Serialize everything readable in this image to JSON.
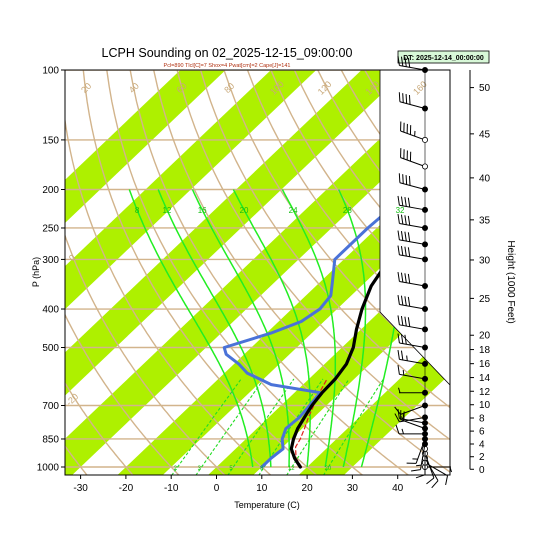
{
  "chart_data": {
    "type": "skew-t sounding",
    "title": "LCPH Sounding on 02_2025-12-15_09:00:00",
    "subtitle": "Pcl=890 Tlcl[C]=7 Shox=4 Pwat[cm]=2 Cape[J]=141",
    "datetime_box": "DT: 2025-12-14_00:00:00",
    "xlabel": "Temperature (C)",
    "ylabel": "P (hPa)",
    "ylabel_right": "Height (1000 Feet)",
    "x_ticks": [
      -30,
      -20,
      -10,
      0,
      10,
      20,
      30,
      40
    ],
    "x_tick_labels": [
      "-30",
      "-20",
      "-10",
      "0",
      "10",
      "20",
      "30",
      "40"
    ],
    "pressure_ticks": [
      100,
      150,
      200,
      250,
      300,
      400,
      500,
      700,
      850,
      1000
    ],
    "pressure_tick_labels": [
      "100",
      "150",
      "200",
      "250",
      "300",
      "400",
      "500",
      "700",
      "850",
      "1000"
    ],
    "xlim": [
      -33.5,
      51.5
    ],
    "plim": [
      100,
      1050
    ],
    "temperature_band_edges": [
      -100,
      -90,
      -80,
      -70,
      -60,
      -50,
      -40,
      -30,
      -20,
      -10,
      0,
      10,
      20,
      30,
      40
    ],
    "dry_adiabats": [
      -30,
      -20,
      -10,
      0,
      10,
      20,
      30,
      40,
      50,
      60,
      70,
      80,
      90,
      100,
      110,
      120,
      130,
      140,
      150,
      160,
      170,
      180,
      190,
      200
    ],
    "dry_adiabat_labels": [
      {
        "theta": 160,
        "text": "160"
      },
      {
        "theta": 140,
        "text": "140"
      },
      {
        "theta": 120,
        "text": "120"
      },
      {
        "theta": 100,
        "text": "100"
      },
      {
        "theta": 80,
        "text": "80"
      },
      {
        "theta": 60,
        "text": "60"
      },
      {
        "theta": 40,
        "text": "40"
      },
      {
        "theta": 20,
        "text": "20"
      },
      {
        "theta": 0,
        "text": "0"
      },
      {
        "theta": -20,
        "text": "-20"
      },
      {
        "theta": -40,
        "text": "-40"
      }
    ],
    "saturated_adiabats_c": [
      8,
      12,
      16,
      20,
      24,
      28,
      32
    ],
    "saturated_adiabat_labels": [
      "8",
      "12",
      "16",
      "20",
      "24",
      "28",
      "32"
    ],
    "mixing_ratios_gkg": [
      2,
      3,
      5,
      8,
      12,
      20
    ],
    "mixing_ratio_labels": [
      "2",
      "3",
      "5",
      "8",
      "12",
      "20"
    ],
    "temperature_profile": [
      {
        "p": 1000,
        "t": 18.5
      },
      {
        "p": 950,
        "t": 15.2
      },
      {
        "p": 900,
        "t": 12.3
      },
      {
        "p": 850,
        "t": 10.5
      },
      {
        "p": 800,
        "t": 9.0
      },
      {
        "p": 750,
        "t": 7.9
      },
      {
        "p": 700,
        "t": 6.8
      },
      {
        "p": 650,
        "t": 6.1
      },
      {
        "p": 600,
        "t": 5.8
      },
      {
        "p": 550,
        "t": 4.8
      },
      {
        "p": 500,
        "t": 2.5
      },
      {
        "p": 450,
        "t": -1.0
      },
      {
        "p": 400,
        "t": -4.5
      },
      {
        "p": 350,
        "t": -7.8
      },
      {
        "p": 300,
        "t": -10.0
      },
      {
        "p": 270,
        "t": -11.3
      },
      {
        "p": 250,
        "t": -11.0
      },
      {
        "p": 220,
        "t": -8.5
      },
      {
        "p": 200,
        "t": -6.0
      },
      {
        "p": 175,
        "t": -1.7
      },
      {
        "p": 150,
        "t": 2.7
      },
      {
        "p": 125,
        "t": 6.6
      },
      {
        "p": 110,
        "t": 9.5
      },
      {
        "p": 100,
        "t": 11.7
      }
    ],
    "dewpoint_profile": [
      {
        "p": 1000,
        "t": 10.0
      },
      {
        "p": 950,
        "t": 10.0
      },
      {
        "p": 900,
        "t": 10.5
      },
      {
        "p": 850,
        "t": 8.0
      },
      {
        "p": 800,
        "t": 6.4
      },
      {
        "p": 750,
        "t": 6.8
      },
      {
        "p": 700,
        "t": 6.3
      },
      {
        "p": 650,
        "t": 5.7
      },
      {
        "p": 620,
        "t": -7.0
      },
      {
        "p": 580,
        "t": -15.0
      },
      {
        "p": 550,
        "t": -19.0
      },
      {
        "p": 520,
        "t": -24.0
      },
      {
        "p": 500,
        "t": -26.0
      },
      {
        "p": 460,
        "t": -19.0
      },
      {
        "p": 430,
        "t": -15.0
      },
      {
        "p": 400,
        "t": -13.8
      },
      {
        "p": 370,
        "t": -14.5
      },
      {
        "p": 340,
        "t": -17.5
      },
      {
        "p": 300,
        "t": -22.0
      },
      {
        "p": 250,
        "t": -22.0
      },
      {
        "p": 200,
        "t": -21.0
      },
      {
        "p": 150,
        "t": -19.5
      },
      {
        "p": 130,
        "t": -16.0
      },
      {
        "p": 115,
        "t": -11.0
      },
      {
        "p": 100,
        "t": -6.0
      }
    ],
    "parcel_path": [
      {
        "p": 1000,
        "t": 18.8
      },
      {
        "p": 950,
        "t": 15.5
      },
      {
        "p": 890,
        "t": 12.8
      },
      {
        "p": 850,
        "t": 12.0
      },
      {
        "p": 800,
        "t": 10.5
      },
      {
        "p": 750,
        "t": 8.8
      },
      {
        "p": 700,
        "t": 7.2
      },
      {
        "p": 650,
        "t": 5.5
      },
      {
        "p": 600,
        "t": 4.0
      }
    ],
    "height_axis_ticks": [
      0,
      2,
      4,
      6,
      8,
      10,
      12,
      14,
      16,
      18,
      20,
      25,
      30,
      35,
      40,
      45,
      50
    ],
    "height_axis_labels": [
      "0",
      "2",
      "4",
      "6",
      "8",
      "10",
      "12",
      "14",
      "16",
      "18",
      "20",
      "25",
      "30",
      "35",
      "40",
      "45",
      "50"
    ],
    "wind_barbs": [
      {
        "p": 1000,
        "dir": 90,
        "speed": 5,
        "hollow": true
      },
      {
        "p": 975,
        "dir": 120,
        "speed": 10,
        "hollow": true
      },
      {
        "p": 950,
        "dir": 150,
        "speed": 10,
        "hollow": true
      },
      {
        "p": 925,
        "dir": 160,
        "speed": 10,
        "hollow": true
      },
      {
        "p": 900,
        "dir": 180,
        "speed": 10,
        "hollow": true
      },
      {
        "p": 875,
        "dir": 190,
        "speed": 15,
        "hollow": false
      },
      {
        "p": 850,
        "dir": 200,
        "speed": 15,
        "hollow": false
      },
      {
        "p": 825,
        "dir": 270,
        "speed": 15,
        "hollow": false
      },
      {
        "p": 800,
        "dir": 290,
        "speed": 20,
        "hollow": false
      },
      {
        "p": 775,
        "dir": 280,
        "speed": 15,
        "hollow": false
      },
      {
        "p": 750,
        "dir": 260,
        "speed": 15,
        "hollow": false
      },
      {
        "p": 700,
        "dir": 250,
        "speed": 10,
        "hollow": false
      },
      {
        "p": 650,
        "dir": 270,
        "speed": 5,
        "hollow": false
      },
      {
        "p": 600,
        "dir": 280,
        "speed": 15,
        "hollow": false
      },
      {
        "p": 550,
        "dir": 280,
        "speed": 25,
        "hollow": false
      },
      {
        "p": 500,
        "dir": 280,
        "speed": 30,
        "hollow": false
      },
      {
        "p": 450,
        "dir": 280,
        "speed": 40,
        "hollow": false
      },
      {
        "p": 400,
        "dir": 280,
        "speed": 40,
        "hollow": false
      },
      {
        "p": 350,
        "dir": 280,
        "speed": 40,
        "hollow": false
      },
      {
        "p": 300,
        "dir": 280,
        "speed": 40,
        "hollow": false
      },
      {
        "p": 275,
        "dir": 280,
        "speed": 40,
        "hollow": false
      },
      {
        "p": 250,
        "dir": 280,
        "speed": 40,
        "hollow": false
      },
      {
        "p": 225,
        "dir": 280,
        "speed": 40,
        "hollow": false
      },
      {
        "p": 200,
        "dir": 285,
        "speed": 40,
        "hollow": false
      },
      {
        "p": 175,
        "dir": 290,
        "speed": 40,
        "hollow": true
      },
      {
        "p": 150,
        "dir": 290,
        "speed": 45,
        "hollow": true
      },
      {
        "p": 125,
        "dir": 285,
        "speed": 40,
        "hollow": false
      },
      {
        "p": 100,
        "dir": 280,
        "speed": 40,
        "hollow": false
      }
    ],
    "colors": {
      "band": "#aef000",
      "dry_adiabat": "#d2b48c",
      "saturated_adiabat": "#22ee22",
      "mixing_ratio": "#22dd22",
      "temperature": "#000000",
      "dewpoint": "#4a72d8",
      "parcel": "#e02020",
      "dt_box": "#d8f8d8"
    }
  }
}
